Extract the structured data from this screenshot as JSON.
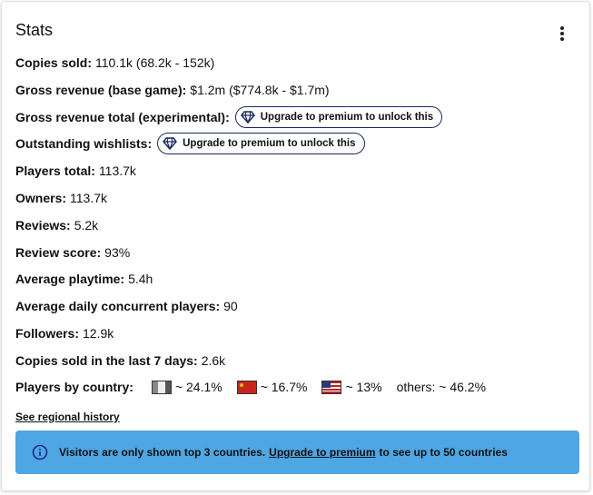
{
  "header": {
    "title": "Stats"
  },
  "stats": [
    {
      "label": "Copies sold:",
      "value": "110.1k (68.2k - 152k)"
    },
    {
      "label": "Gross revenue (base game):",
      "value": "$1.2m ($774.8k - $1.7m)"
    },
    {
      "label": "Gross revenue total (experimental):",
      "button": "Upgrade to premium to unlock this"
    },
    {
      "label": "Outstanding wishlists:",
      "button": "Upgrade to premium to unlock this"
    },
    {
      "label": "Players total:",
      "value": "113.7k"
    },
    {
      "label": "Owners:",
      "value": "113.7k"
    },
    {
      "label": "Reviews:",
      "value": "5.2k"
    },
    {
      "label": "Review score:",
      "value": "93%"
    },
    {
      "label": "Average playtime:",
      "value": "5.4h"
    },
    {
      "label": "Average daily concurrent players:",
      "value": "90"
    },
    {
      "label": "Followers:",
      "value": "12.9k"
    },
    {
      "label": "Copies sold in the last 7 days:",
      "value": "2.6k"
    }
  ],
  "countries": {
    "label": "Players by country:",
    "items": [
      "~ 24.1%",
      "~ 16.7%",
      "~ 13%"
    ],
    "others": "others: ~ 46.2%"
  },
  "link": "See regional history",
  "notice": {
    "text": "Visitors are only shown top 3 countries.",
    "link": "Upgrade to premium",
    "suffix": "to see up to 50 countries"
  }
}
